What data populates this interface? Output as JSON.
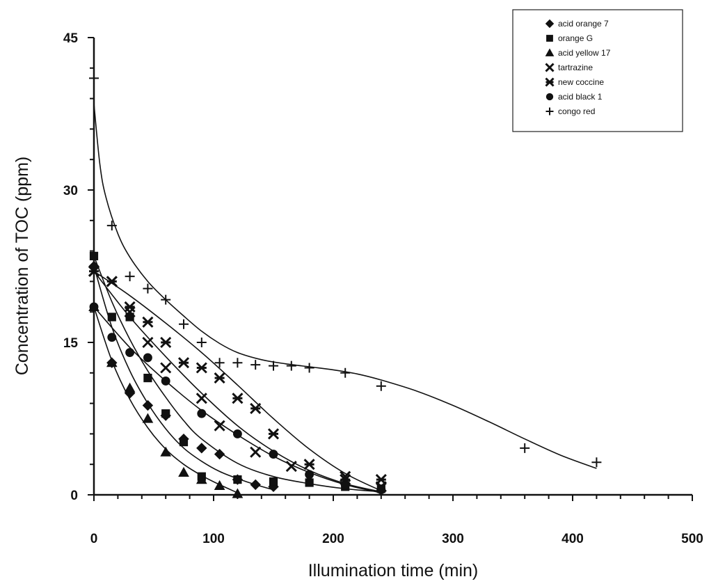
{
  "chart_data": {
    "type": "scatter",
    "title": "",
    "xlabel": "Illumination time (min)",
    "ylabel": "Concentration of TOC (ppm)",
    "xlim": [
      0,
      500
    ],
    "ylim": [
      0,
      45
    ],
    "x_ticks": [
      0,
      100,
      200,
      300,
      400,
      500
    ],
    "y_ticks": [
      0,
      15,
      30,
      45
    ],
    "grid": false,
    "legend_position": "top-right",
    "series": [
      {
        "name": "acid orange 7",
        "marker": "diamond",
        "x": [
          0,
          15,
          30,
          45,
          60,
          75,
          90,
          105,
          120,
          135,
          150
        ],
        "y": [
          22.5,
          13,
          10,
          8.8,
          7.8,
          5.5,
          4.6,
          4.0,
          1.5,
          1.0,
          0.8
        ],
        "curve": [
          [
            0,
            22.5
          ],
          [
            15,
            16.5
          ],
          [
            30,
            12.2
          ],
          [
            45,
            9.0
          ],
          [
            60,
            6.5
          ],
          [
            75,
            4.6
          ],
          [
            90,
            3.3
          ],
          [
            105,
            2.3
          ],
          [
            120,
            1.6
          ],
          [
            135,
            1.0
          ],
          [
            150,
            0.5
          ]
        ]
      },
      {
        "name": "orange G",
        "marker": "square",
        "x": [
          0,
          15,
          30,
          45,
          60,
          75,
          90,
          120,
          150,
          180,
          210,
          240
        ],
        "y": [
          23.5,
          17.5,
          17.5,
          11.5,
          8.0,
          5.2,
          1.8,
          1.5,
          1.3,
          1.2,
          0.8,
          0.6
        ],
        "curve": [
          [
            0,
            23.5
          ],
          [
            15,
            19
          ],
          [
            30,
            15.3
          ],
          [
            45,
            12.2
          ],
          [
            60,
            9.6
          ],
          [
            75,
            7.3
          ],
          [
            90,
            5.5
          ],
          [
            120,
            3.1
          ],
          [
            150,
            1.8
          ],
          [
            180,
            1.1
          ],
          [
            210,
            0.6
          ],
          [
            240,
            0.3
          ]
        ]
      },
      {
        "name": "acid yellow 17",
        "marker": "triangle",
        "x": [
          0,
          15,
          30,
          45,
          60,
          75,
          90,
          105,
          120
        ],
        "y": [
          18.5,
          13,
          10.5,
          7.5,
          4.2,
          2.2,
          1.5,
          0.9,
          0.1
        ],
        "curve": [
          [
            0,
            18.5
          ],
          [
            15,
            13.2
          ],
          [
            30,
            9.4
          ],
          [
            45,
            6.6
          ],
          [
            60,
            4.5
          ],
          [
            75,
            3.0
          ],
          [
            90,
            1.9
          ],
          [
            105,
            1.0
          ],
          [
            120,
            0.2
          ]
        ]
      },
      {
        "name": "tartrazine",
        "marker": "x",
        "x": [
          0,
          15,
          30,
          45,
          60,
          90,
          105,
          135,
          165,
          210,
          240
        ],
        "y": [
          22,
          21,
          18,
          15,
          12.5,
          9.5,
          6.8,
          4.2,
          2.8,
          1.8,
          0.8
        ],
        "curve": [
          [
            0,
            22
          ],
          [
            30,
            17.5
          ],
          [
            60,
            13.6
          ],
          [
            90,
            10.0
          ],
          [
            120,
            6.8
          ],
          [
            150,
            4.3
          ],
          [
            180,
            2.4
          ],
          [
            210,
            1.1
          ],
          [
            240,
            0.3
          ]
        ]
      },
      {
        "name": "new coccine",
        "marker": "asterisk",
        "x": [
          0,
          15,
          30,
          45,
          60,
          75,
          90,
          105,
          120,
          135,
          150,
          180,
          210,
          240
        ],
        "y": [
          22,
          21,
          18.5,
          17,
          15,
          13,
          12.5,
          11.5,
          9.5,
          8.5,
          6.0,
          3.0,
          1.5,
          1.5
        ],
        "curve": [
          [
            0,
            22
          ],
          [
            30,
            19.6
          ],
          [
            60,
            16.9
          ],
          [
            90,
            14.0
          ],
          [
            120,
            10.8
          ],
          [
            150,
            7.5
          ],
          [
            180,
            4.5
          ],
          [
            210,
            2.1
          ],
          [
            240,
            0.4
          ]
        ]
      },
      {
        "name": "acid black 1",
        "marker": "circle",
        "x": [
          0,
          15,
          30,
          45,
          60,
          90,
          120,
          150,
          180,
          210,
          240
        ],
        "y": [
          18.5,
          15.5,
          14,
          13.5,
          11.2,
          8.0,
          6.0,
          4.0,
          2.0,
          1.0,
          0.5
        ],
        "curve": [
          [
            0,
            18.5
          ],
          [
            30,
            14.5
          ],
          [
            60,
            11.2
          ],
          [
            90,
            8.3
          ],
          [
            120,
            5.9
          ],
          [
            150,
            3.8
          ],
          [
            180,
            2.2
          ],
          [
            210,
            1.0
          ],
          [
            240,
            0.2
          ]
        ]
      },
      {
        "name": "congo red",
        "marker": "plus",
        "x": [
          0,
          15,
          30,
          45,
          60,
          75,
          90,
          105,
          120,
          135,
          150,
          165,
          180,
          210,
          240,
          360,
          420
        ],
        "y": [
          41,
          26.5,
          21.5,
          20.3,
          19.2,
          16.8,
          15,
          13,
          13,
          12.8,
          12.7,
          12.7,
          12.5,
          12,
          10.7,
          4.6,
          3.2
        ],
        "curve": [
          [
            0,
            38.5
          ],
          [
            5,
            32.5
          ],
          [
            10,
            29.3
          ],
          [
            20,
            25.7
          ],
          [
            30,
            23.4
          ],
          [
            45,
            21.0
          ],
          [
            60,
            19.2
          ],
          [
            75,
            17.6
          ],
          [
            90,
            16.1
          ],
          [
            105,
            14.9
          ],
          [
            120,
            14.0
          ],
          [
            140,
            13.3
          ],
          [
            160,
            12.9
          ],
          [
            180,
            12.6
          ],
          [
            200,
            12.3
          ],
          [
            220,
            11.9
          ],
          [
            240,
            11.3
          ],
          [
            270,
            10.2
          ],
          [
            300,
            8.8
          ],
          [
            330,
            7.2
          ],
          [
            360,
            5.5
          ],
          [
            390,
            3.9
          ],
          [
            420,
            2.6
          ]
        ]
      }
    ]
  }
}
